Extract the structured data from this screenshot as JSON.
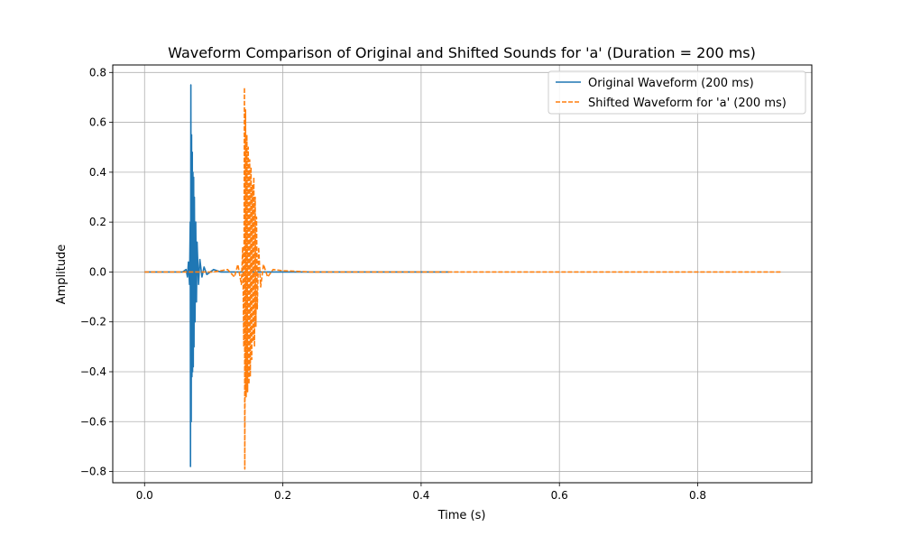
{
  "chart_data": {
    "type": "line",
    "title": "Waveform Comparison of Original and Shifted Sounds for 'a' (Duration = 200 ms)",
    "xlabel": "Time (s)",
    "ylabel": "Amplitude",
    "xlim": [
      -0.046,
      0.965
    ],
    "ylim": [
      -0.845,
      0.83
    ],
    "xticks": [
      0.0,
      0.2,
      0.4,
      0.6,
      0.8
    ],
    "xtick_labels": [
      "0.0",
      "0.2",
      "0.4",
      "0.6",
      "0.8"
    ],
    "yticks": [
      -0.8,
      -0.6,
      -0.4,
      -0.2,
      0.0,
      0.2,
      0.4,
      0.6,
      0.8
    ],
    "ytick_labels": [
      "−0.8",
      "−0.6",
      "−0.4",
      "−0.2",
      "0.0",
      "0.2",
      "0.4",
      "0.6",
      "0.8"
    ],
    "grid": true,
    "legend_position": "top-right",
    "series": [
      {
        "name": "Original Waveform (200 ms)",
        "color": "#1f77b4",
        "style": "solid",
        "x": [
          0.0,
          0.055,
          0.06,
          0.062,
          0.0635,
          0.065,
          0.066,
          0.0665,
          0.067,
          0.0675,
          0.068,
          0.0685,
          0.069,
          0.0695,
          0.07,
          0.0705,
          0.071,
          0.0715,
          0.072,
          0.073,
          0.074,
          0.075,
          0.076,
          0.078,
          0.08,
          0.083,
          0.086,
          0.09,
          0.1,
          0.11,
          0.2,
          0.3,
          0.4,
          0.44
        ],
        "y": [
          0.0,
          0.0,
          0.01,
          -0.02,
          0.04,
          -0.05,
          0.2,
          -0.78,
          0.75,
          -0.6,
          0.55,
          -0.42,
          0.48,
          -0.4,
          0.4,
          -0.38,
          0.38,
          -0.3,
          0.3,
          -0.2,
          0.2,
          -0.12,
          0.12,
          -0.05,
          0.05,
          -0.02,
          0.02,
          -0.01,
          0.01,
          0.0,
          0.0,
          0.0,
          0.0,
          0.0
        ]
      },
      {
        "name": "Shifted Waveform for 'a' (200 ms)",
        "color": "#ff7f0e",
        "style": "dashed",
        "x": [
          0.0,
          0.1,
          0.12,
          0.13,
          0.135,
          0.14,
          0.142,
          0.1435,
          0.1445,
          0.145,
          0.146,
          0.147,
          0.148,
          0.149,
          0.15,
          0.151,
          0.152,
          0.153,
          0.154,
          0.155,
          0.156,
          0.157,
          0.158,
          0.159,
          0.16,
          0.161,
          0.162,
          0.163,
          0.165,
          0.168,
          0.172,
          0.178,
          0.186,
          0.2,
          0.24,
          0.3,
          0.5,
          0.7,
          0.92
        ],
        "y": [
          0.0,
          0.0,
          0.01,
          -0.02,
          0.03,
          -0.05,
          0.1,
          -0.3,
          0.74,
          -0.79,
          0.65,
          -0.5,
          0.55,
          -0.48,
          0.5,
          -0.45,
          0.45,
          -0.42,
          0.42,
          -0.35,
          0.35,
          -0.28,
          0.38,
          -0.3,
          0.3,
          -0.22,
          0.22,
          -0.15,
          0.1,
          -0.06,
          0.03,
          -0.02,
          0.01,
          0.005,
          0.0,
          0.0,
          0.0,
          0.0,
          0.0
        ]
      }
    ]
  }
}
